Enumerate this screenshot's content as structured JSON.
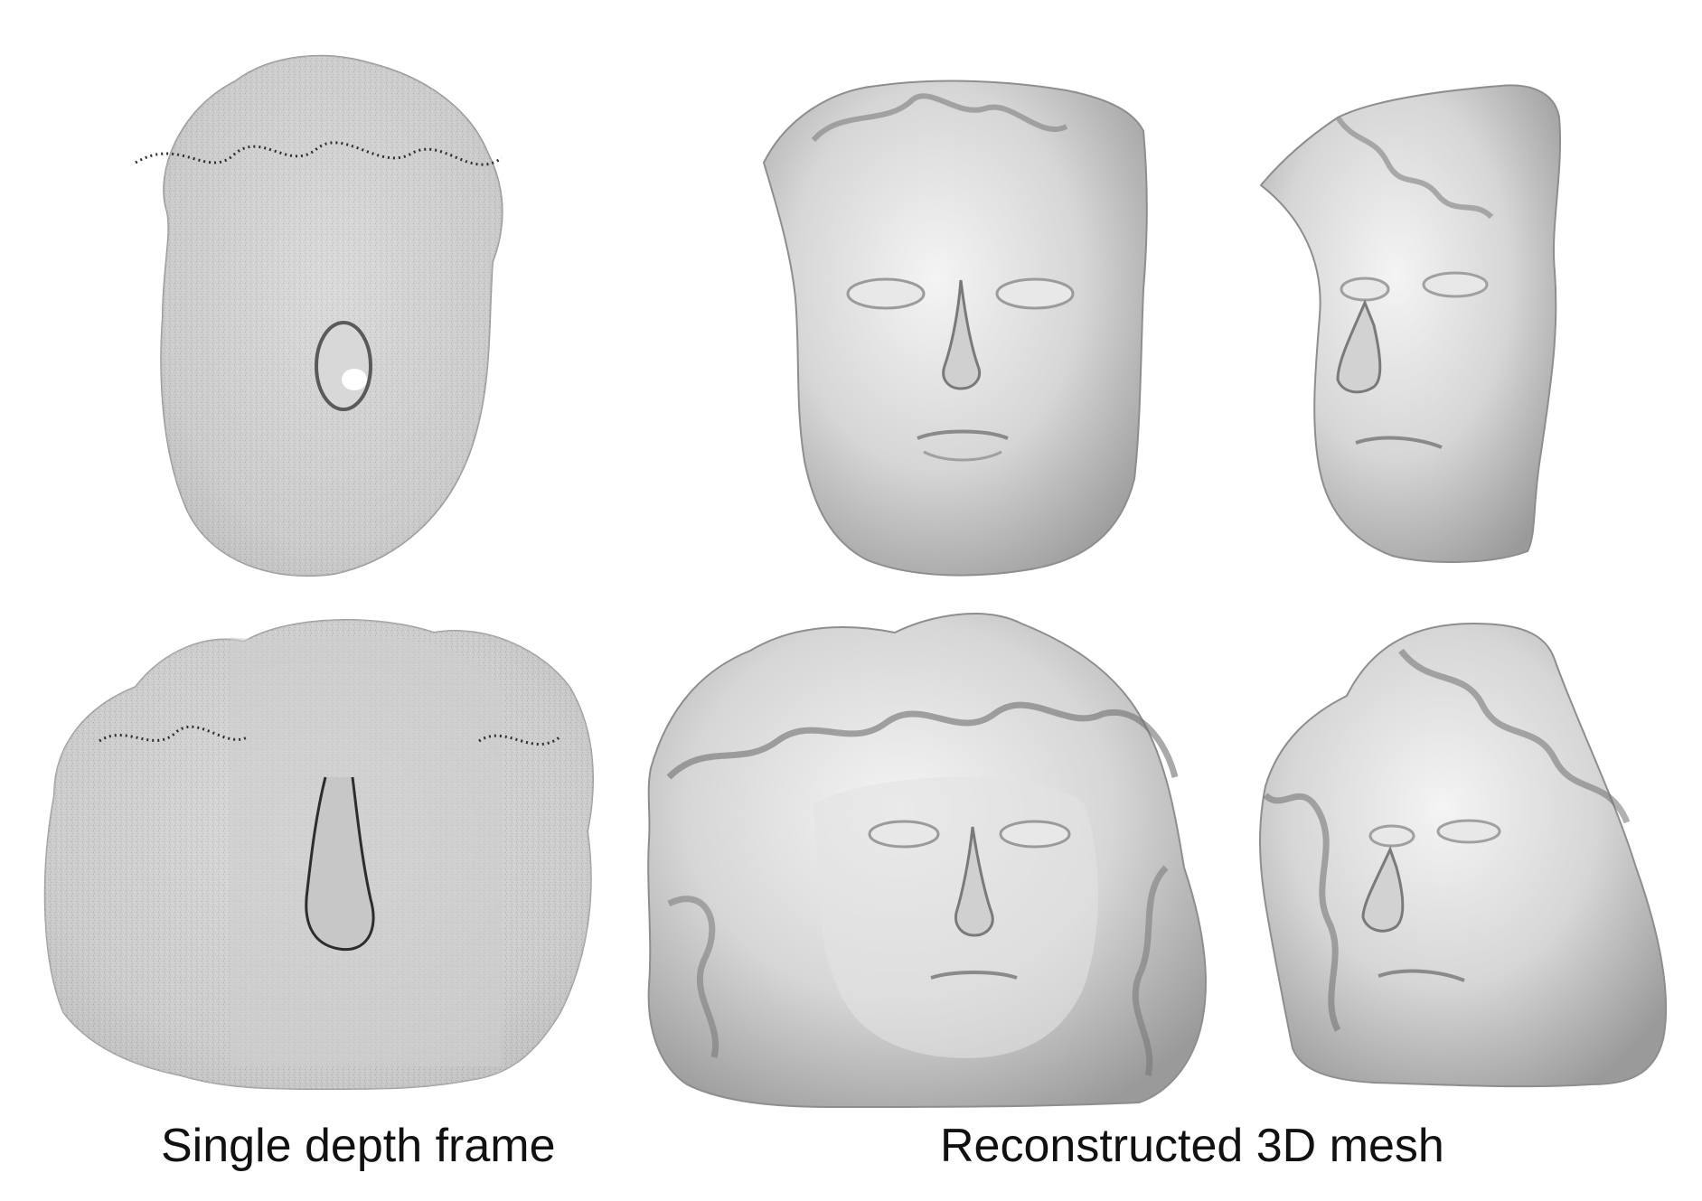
{
  "captions": {
    "left": "Single depth frame",
    "right": "Reconstructed 3D mesh"
  },
  "colors": {
    "background": "#ffffff",
    "mesh_light": "#ededed",
    "mesh_mid": "#bdbdbd",
    "mesh_dark": "#6a6a6a",
    "speckle": "#3a3a3a"
  }
}
